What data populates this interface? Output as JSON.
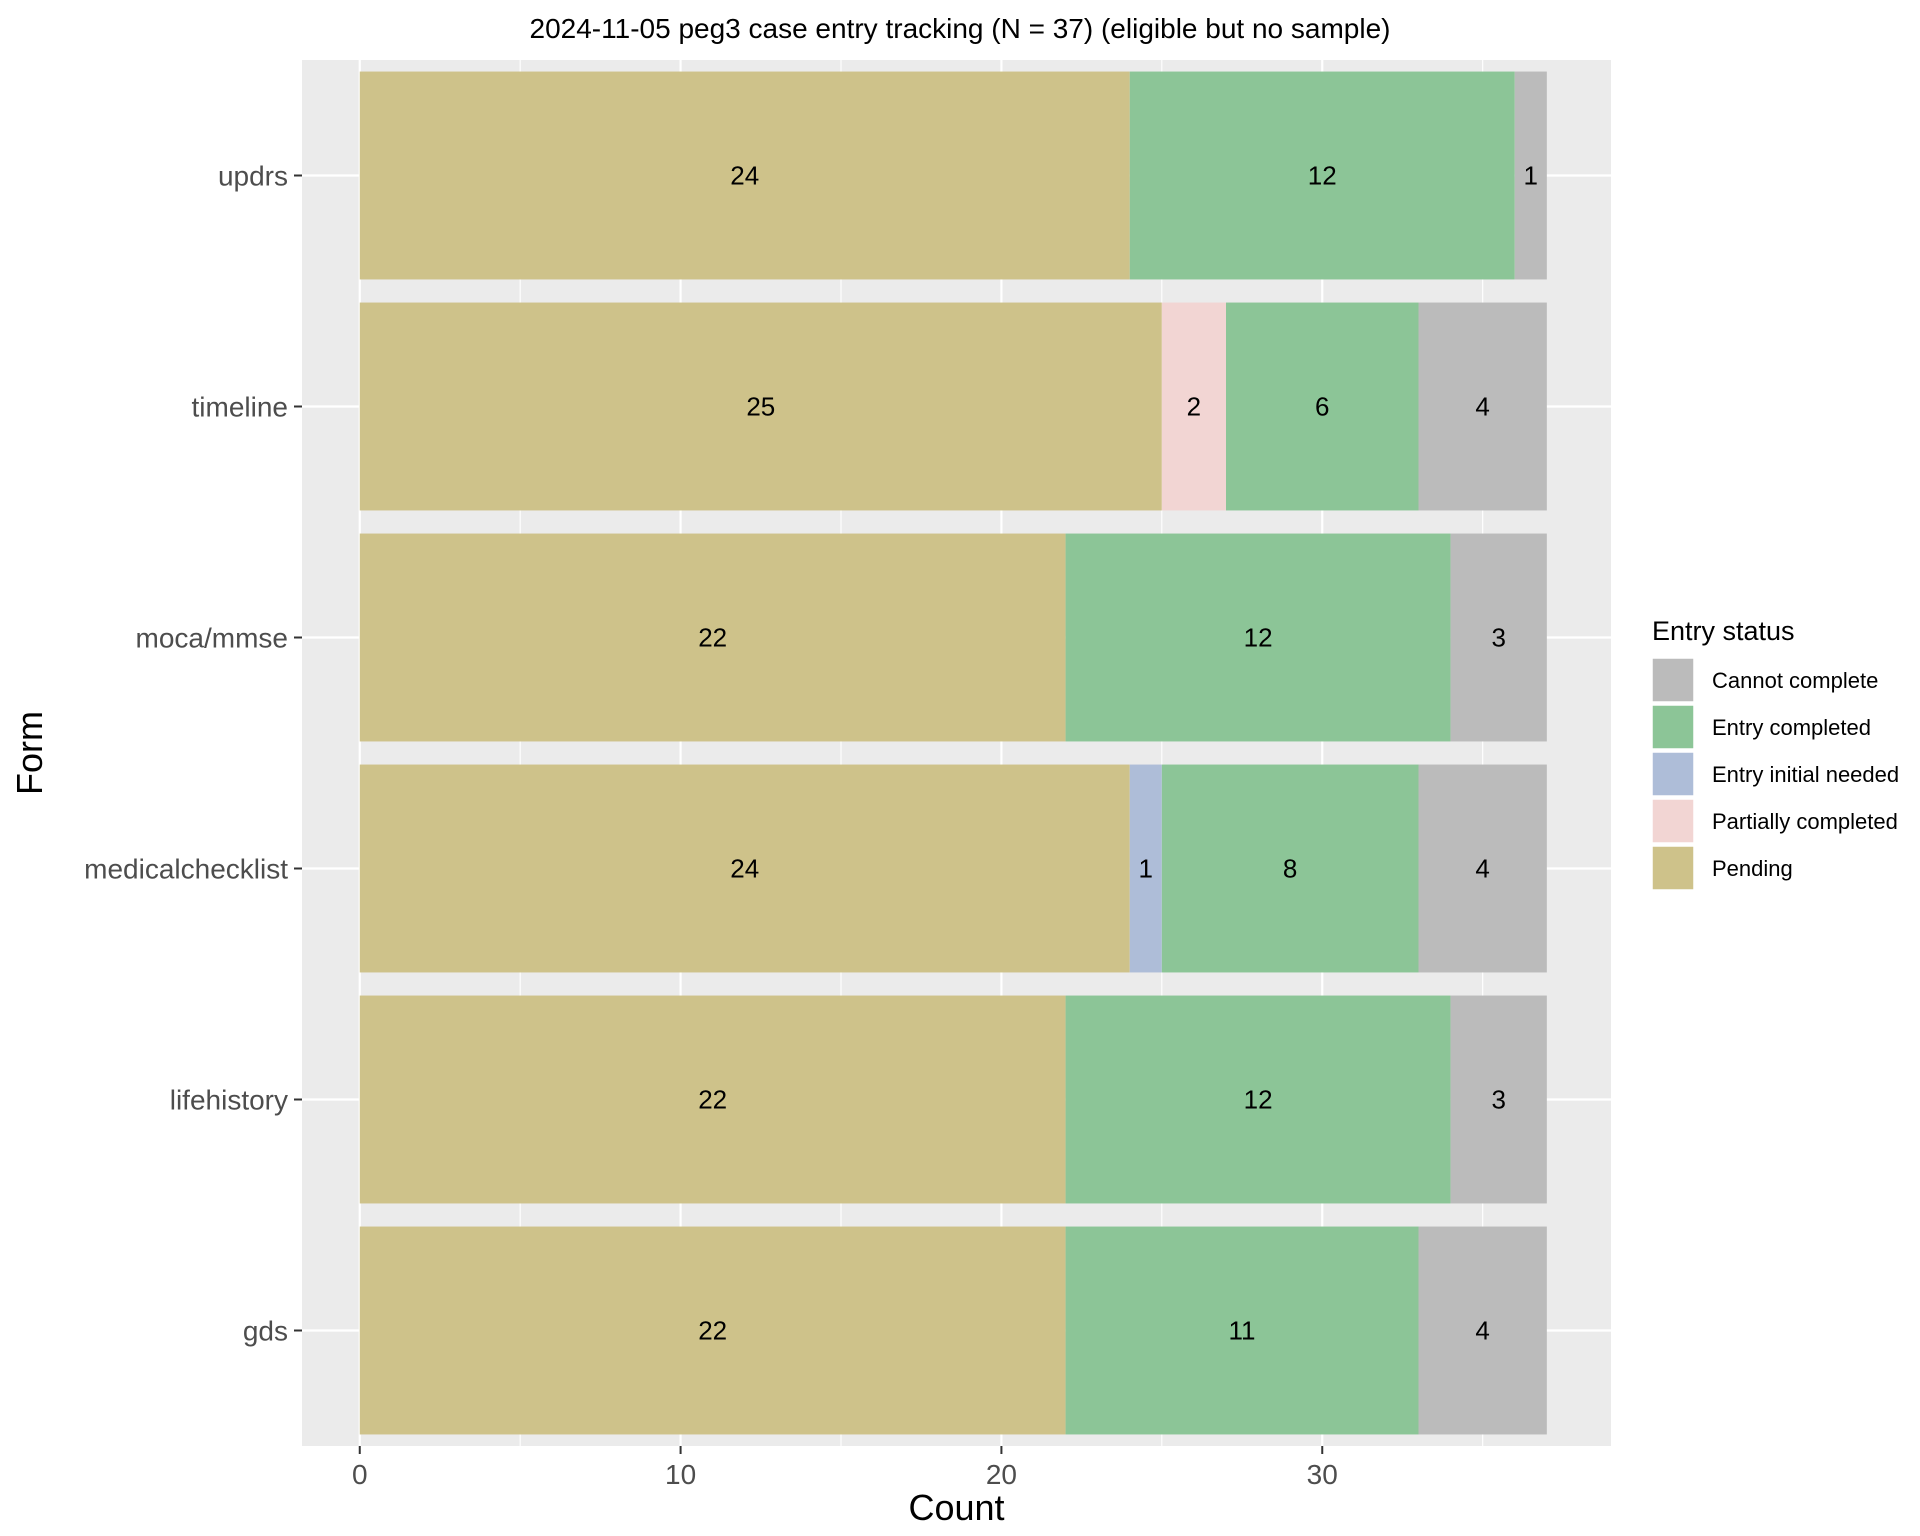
{
  "chart_data": {
    "type": "bar",
    "orientation": "horizontal",
    "stacked": true,
    "title": "2024-11-05 peg3 case entry tracking (N = 37) (eligible but no sample)",
    "xlabel": "Count",
    "ylabel": "Form",
    "xlim": [
      -1.8,
      39
    ],
    "x_ticks": [
      0,
      10,
      20,
      30
    ],
    "grid": true,
    "categories": [
      "updrs",
      "timeline",
      "moca/mmse",
      "medicalchecklist",
      "lifehistory",
      "gds"
    ],
    "stack_order": [
      "Pending",
      "Entry initial needed",
      "Partially completed",
      "Entry completed",
      "Cannot complete"
    ],
    "series": [
      {
        "name": "Cannot complete",
        "color": "#bbbbbb",
        "values": [
          1,
          4,
          3,
          4,
          3,
          4
        ]
      },
      {
        "name": "Entry completed",
        "color": "#8cc597",
        "values": [
          12,
          6,
          12,
          8,
          12,
          11
        ]
      },
      {
        "name": "Entry initial needed",
        "color": "#aebdd8",
        "values": [
          0,
          0,
          0,
          1,
          0,
          0
        ]
      },
      {
        "name": "Partially completed",
        "color": "#f2d5d3",
        "values": [
          0,
          2,
          0,
          0,
          0,
          0
        ]
      },
      {
        "name": "Pending",
        "color": "#cec28a",
        "values": [
          24,
          25,
          22,
          24,
          22,
          22
        ]
      }
    ],
    "legend": {
      "title": "Entry status",
      "position": "right",
      "entries": [
        "Cannot complete",
        "Entry completed",
        "Entry initial needed",
        "Partially completed",
        "Pending"
      ]
    },
    "colors": {
      "panel_background": "#ebebeb",
      "grid": "#ffffff"
    }
  }
}
